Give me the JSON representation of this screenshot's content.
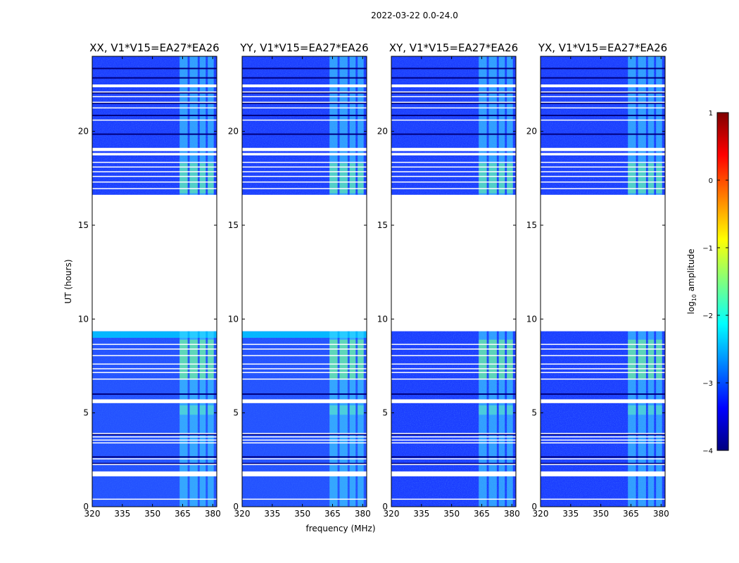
{
  "figure": {
    "suptitle": "2022-03-22 0.0-24.0",
    "xlabel": "frequency (MHz)",
    "ylabel": "UT (hours)"
  },
  "colors": {
    "low": "#00007f",
    "mid": "#00d5ff",
    "high": "#7f0000",
    "flag": "#ffffff"
  },
  "chart_data": {
    "type": "heatmap",
    "colormap": "jet",
    "xlim": [
      320,
      382
    ],
    "ylim": [
      0,
      24
    ],
    "xticks": [
      320,
      335,
      350,
      365,
      380
    ],
    "yticks": [
      0,
      5,
      10,
      15,
      20
    ],
    "panels": [
      {
        "title": "XX, V1*V15=EA27*EA26",
        "show_ylabel": true,
        "lower_segment_bright": true
      },
      {
        "title": "YY, V1*V15=EA27*EA26",
        "show_ylabel": false,
        "lower_segment_bright": true
      },
      {
        "title": "XY, V1*V15=EA27*EA26",
        "show_ylabel": false,
        "lower_segment_bright": false
      },
      {
        "title": "YX, V1*V15=EA27*EA26",
        "show_ylabel": false,
        "lower_segment_bright": false
      }
    ],
    "flagged_ut_ranges": [
      [
        1.62,
        1.88
      ],
      [
        5.52,
        5.72
      ],
      [
        9.35,
        16.62
      ],
      [
        18.72,
        18.85
      ],
      [
        18.95,
        19.12
      ],
      [
        22.35,
        22.5
      ]
    ],
    "white_line_ut": [
      0.4,
      2.25,
      2.55,
      3.4,
      3.55,
      3.72,
      3.9,
      6.8,
      7.15,
      7.35,
      7.6,
      8.05,
      8.4,
      8.65,
      16.95,
      17.3,
      17.6,
      17.85,
      18.1,
      18.35,
      20.6,
      21.25,
      21.55,
      21.85,
      22.1
    ],
    "dark_line_ut": [
      2.3,
      2.65,
      3.85,
      6.0,
      19.85,
      20.85,
      21.5,
      22.05,
      22.85,
      23.35
    ],
    "rfi_bands_mhz": [
      [
        363.5,
        367.5
      ],
      [
        368.5,
        372.5
      ],
      [
        373.5,
        376.5
      ],
      [
        377.5,
        380.5
      ]
    ],
    "colorbar": {
      "label_main": "log",
      "label_sub": "10",
      "label_rest": " amplitude",
      "range": [
        -4,
        1
      ],
      "ticks": [
        "1",
        "0",
        "−1",
        "−2",
        "−3",
        "−4"
      ]
    }
  }
}
